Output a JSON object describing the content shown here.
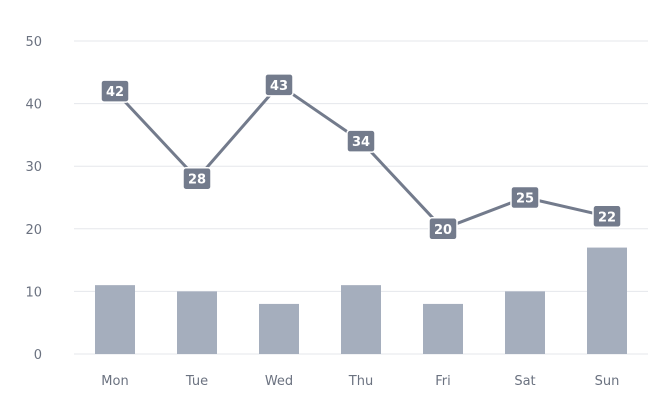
{
  "chart_data": {
    "type": "bar",
    "categories": [
      "Mon",
      "Tue",
      "Wed",
      "Thu",
      "Fri",
      "Sat",
      "Sun"
    ],
    "ylim": [
      0,
      50
    ],
    "yticks": [
      0,
      10,
      20,
      30,
      40,
      50
    ],
    "grid": true,
    "series": [
      {
        "type": "bar",
        "values": [
          11,
          10,
          8,
          11,
          8,
          10,
          17
        ],
        "color": "#a5aebd"
      },
      {
        "type": "line",
        "values": [
          42,
          28,
          43,
          34,
          20,
          25,
          22
        ],
        "color": "#737b8c",
        "data_labels": true
      }
    ],
    "colors": {
      "grid": "#e5e7eb",
      "axis_text": "#6b7280",
      "label_text": "#ffffff"
    }
  }
}
